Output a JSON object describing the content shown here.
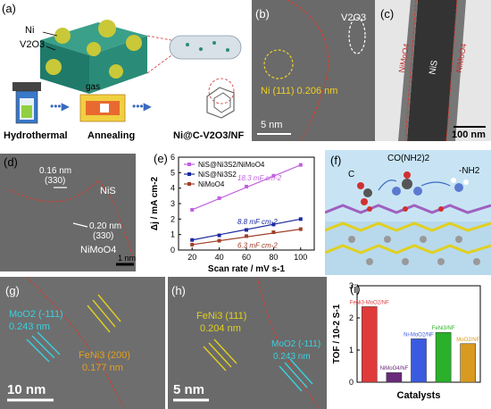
{
  "panels": {
    "a": {
      "label": "(a)",
      "labels": {
        "ni": "Ni",
        "v2o3": "V2O3",
        "hydrothermal": "Hydrothermal",
        "gas": "gas",
        "annealing": "Annealing",
        "product": "Ni@C-V2O3/NF"
      }
    },
    "b": {
      "label": "(b)",
      "ni_text": "Ni (111) 0.206 nm",
      "v2o3_text": "V2O3",
      "scale": "5 nm"
    },
    "c": {
      "label": "(c)",
      "nis_text": "NiS",
      "left_text": "NiMoO4",
      "right_text": "NiMoO4",
      "scale": "100 nm"
    },
    "d": {
      "label": "(d)",
      "d1": "0.16 nm",
      "d1_plane": "(330)",
      "nis": "NiS",
      "d2": "0.20 nm",
      "d2_plane": "(330)",
      "nimoo": "NiMoO4",
      "scale": "1 nm"
    },
    "e": {
      "label": "(e)"
    },
    "f": {
      "label": "(f)",
      "top_mol": "CO(NH2)2",
      "left_mol": "C",
      "right_mol": "-NH2"
    },
    "g": {
      "label": "(g)",
      "moo2": "MoO2 (-111)",
      "moo2_d": "0.243 nm",
      "feni3": "FeNi3 (200)",
      "feni3_d": "0.177 nm",
      "scale": "10 nm"
    },
    "h": {
      "label": "(h)",
      "feni3": "FeNi3 (111)",
      "feni3_d": "0.204 nm",
      "moo2": "MoO2 (-111)",
      "moo2_d": "0.243 nm",
      "scale": "5 nm"
    },
    "i": {
      "label": "(i)"
    }
  },
  "chart_data": [
    {
      "type": "line",
      "xlabel": "Scan rate / mV s-1",
      "ylabel": "Δj / mA cm-2",
      "xlim": [
        10,
        110
      ],
      "ylim": [
        0,
        6
      ],
      "xticks": [
        "20",
        "40",
        "60",
        "80",
        "100"
      ],
      "yticks": [
        "0",
        "1",
        "2",
        "3",
        "4",
        "5",
        "6"
      ],
      "series": [
        {
          "name": "NiS@Ni3S2/NiMoO4",
          "color": "#c060e0",
          "x": [
            20,
            40,
            60,
            80,
            100
          ],
          "y": [
            2.6,
            3.35,
            4.1,
            4.8,
            5.5
          ],
          "annotation": "18.3 mF cm-2"
        },
        {
          "name": "NiS@Ni3S2",
          "color": "#1a2aa0",
          "x": [
            20,
            40,
            60,
            80,
            100
          ],
          "y": [
            0.65,
            0.95,
            1.3,
            1.65,
            2.0
          ],
          "annotation": "8.8 mF cm-2"
        },
        {
          "name": "NiMoO4",
          "color": "#a0402a",
          "x": [
            20,
            40,
            60,
            80,
            100
          ],
          "y": [
            0.35,
            0.6,
            0.9,
            1.15,
            1.35
          ],
          "annotation": "6.3 mF cm-2"
        }
      ]
    },
    {
      "type": "bar",
      "xlabel": "Catalysts",
      "ylabel": "TOF / 10-2 S-1",
      "ylim": [
        0,
        3
      ],
      "yticks": [
        "0",
        "1",
        "2",
        "3"
      ],
      "categories": [
        "FeNi3-MoO2/NF",
        "NiMoO4/NF",
        "Ni-MoO2/NF",
        "FeNi3/NF",
        "MoO2/NF"
      ],
      "values": [
        2.35,
        0.3,
        1.35,
        1.55,
        1.2
      ],
      "colors": [
        "#e03a3a",
        "#6a2a7a",
        "#3a5ae0",
        "#2ab02a",
        "#d89a20"
      ]
    }
  ]
}
